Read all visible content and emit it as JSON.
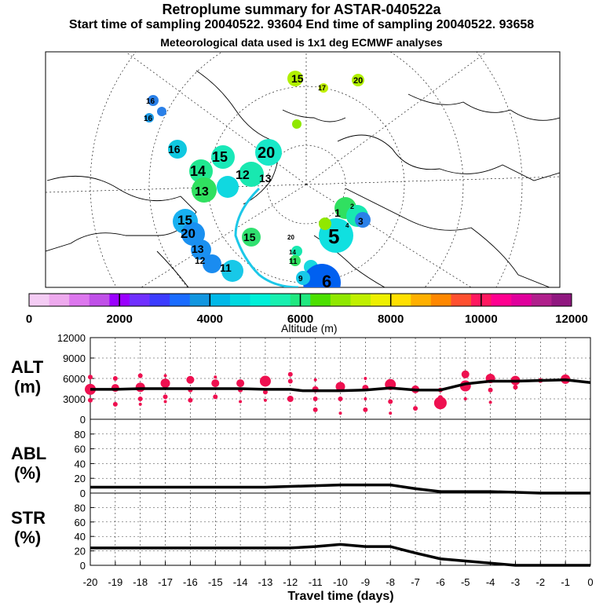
{
  "header": {
    "title": "Retroplume summary for ASTAR-040522a",
    "sampling": "Start time of sampling 20040522. 93604     End time of sampling 20040522. 93658",
    "met": "Meteorological data used is 1x1 deg ECMWF analyses"
  },
  "colorbar": {
    "title": "Altitude (m)",
    "ticks": [
      "0",
      "2000",
      "4000",
      "6000",
      "8000",
      "10000",
      "12000"
    ],
    "colors": [
      "#f4ccf4",
      "#eeaaee",
      "#dd77ee",
      "#c050e8",
      "#9a00ff",
      "#7030ff",
      "#3c3cff",
      "#1a6cff",
      "#1296e0",
      "#00b8e8",
      "#00d8e0",
      "#00f0d8",
      "#18f0b0",
      "#20e880",
      "#4ce000",
      "#90e800",
      "#c0f000",
      "#eef000",
      "#ffe000",
      "#ffb000",
      "#ff8800",
      "#ff5030",
      "#ff1860",
      "#ff0090",
      "#e0009c",
      "#b0208c",
      "#901880"
    ]
  },
  "map_labels": [
    "15",
    "20",
    "17",
    "16",
    "15",
    "20",
    "16",
    "16",
    "15",
    "20",
    "14",
    "13",
    "12",
    "11",
    "12",
    "13",
    "15",
    "20",
    "14",
    "11",
    "9",
    "6",
    "5",
    "1",
    "4",
    "2",
    "3",
    "13"
  ],
  "chart_data": [
    {
      "type": "scatter",
      "name": "altitude",
      "title": "ALT",
      "ylabel": "ALT (m)",
      "xlabel": "Travel time (days)",
      "xlim": [
        -20,
        0
      ],
      "ylim": [
        0,
        12000
      ],
      "yticks": [
        "0",
        "3000",
        "6000",
        "9000",
        "12000"
      ],
      "line": {
        "x": [
          -20,
          -19,
          -18,
          -17,
          -16,
          -15,
          -14,
          -13,
          -12,
          -11.5,
          -11,
          -10,
          -9,
          -8,
          -7,
          -6,
          -5,
          -4,
          -3,
          -2,
          -1,
          0
        ],
        "y": [
          4400,
          4400,
          4500,
          4500,
          4500,
          4500,
          4500,
          4400,
          4400,
          4200,
          4200,
          4200,
          4300,
          4600,
          4300,
          4300,
          5200,
          5600,
          5600,
          5700,
          5800,
          5400
        ]
      },
      "clusters": [
        {
          "x": -20,
          "y": 4400,
          "r": 7
        },
        {
          "x": -20,
          "y": 6200,
          "r": 3
        },
        {
          "x": -20,
          "y": 2800,
          "r": 3
        },
        {
          "x": -19,
          "y": 4600,
          "r": 5
        },
        {
          "x": -19,
          "y": 6000,
          "r": 3
        },
        {
          "x": -19,
          "y": 2200,
          "r": 3
        },
        {
          "x": -18,
          "y": 4700,
          "r": 6
        },
        {
          "x": -18,
          "y": 6400,
          "r": 3
        },
        {
          "x": -18,
          "y": 3000,
          "r": 3
        },
        {
          "x": -18,
          "y": 2200,
          "r": 2
        },
        {
          "x": -17,
          "y": 5300,
          "r": 6
        },
        {
          "x": -17,
          "y": 6400,
          "r": 2
        },
        {
          "x": -17,
          "y": 3300,
          "r": 3
        },
        {
          "x": -17,
          "y": 2600,
          "r": 2
        },
        {
          "x": -16,
          "y": 5800,
          "r": 5
        },
        {
          "x": -16,
          "y": 4300,
          "r": 3
        },
        {
          "x": -16,
          "y": 2800,
          "r": 3
        },
        {
          "x": -15,
          "y": 5300,
          "r": 5
        },
        {
          "x": -15,
          "y": 6200,
          "r": 2
        },
        {
          "x": -15,
          "y": 3300,
          "r": 3
        },
        {
          "x": -14,
          "y": 5300,
          "r": 5
        },
        {
          "x": -14,
          "y": 4300,
          "r": 3
        },
        {
          "x": -14,
          "y": 2600,
          "r": 2
        },
        {
          "x": -13,
          "y": 5600,
          "r": 7
        },
        {
          "x": -13,
          "y": 4000,
          "r": 3
        },
        {
          "x": -13,
          "y": 2800,
          "r": 2
        },
        {
          "x": -12,
          "y": 5600,
          "r": 3
        },
        {
          "x": -12,
          "y": 6600,
          "r": 3
        },
        {
          "x": -12,
          "y": 3000,
          "r": 4
        },
        {
          "x": -11,
          "y": 4400,
          "r": 4
        },
        {
          "x": -11,
          "y": 3000,
          "r": 3
        },
        {
          "x": -11,
          "y": 1400,
          "r": 3
        },
        {
          "x": -11,
          "y": 5800,
          "r": 2
        },
        {
          "x": -10,
          "y": 4800,
          "r": 6
        },
        {
          "x": -10,
          "y": 3000,
          "r": 3
        },
        {
          "x": -10,
          "y": 900,
          "r": 2
        },
        {
          "x": -9,
          "y": 4600,
          "r": 4
        },
        {
          "x": -9,
          "y": 3000,
          "r": 2
        },
        {
          "x": -9,
          "y": 1400,
          "r": 3
        },
        {
          "x": -9,
          "y": 6000,
          "r": 2
        },
        {
          "x": -8,
          "y": 5100,
          "r": 7
        },
        {
          "x": -8,
          "y": 2600,
          "r": 3
        },
        {
          "x": -8,
          "y": 900,
          "r": 2
        },
        {
          "x": -7,
          "y": 4400,
          "r": 5
        },
        {
          "x": -7,
          "y": 1600,
          "r": 3
        },
        {
          "x": -6,
          "y": 2400,
          "r": 8
        },
        {
          "x": -6,
          "y": 3200,
          "r": 3
        },
        {
          "x": -6,
          "y": 4300,
          "r": 3
        },
        {
          "x": -5,
          "y": 4900,
          "r": 7
        },
        {
          "x": -5,
          "y": 6600,
          "r": 5
        },
        {
          "x": -5,
          "y": 3000,
          "r": 2
        },
        {
          "x": -4,
          "y": 6000,
          "r": 6
        },
        {
          "x": -4,
          "y": 4300,
          "r": 3
        },
        {
          "x": -4,
          "y": 2500,
          "r": 2
        },
        {
          "x": -3,
          "y": 5700,
          "r": 6
        },
        {
          "x": -3,
          "y": 4700,
          "r": 3
        },
        {
          "x": -2,
          "y": 5700,
          "r": 3
        },
        {
          "x": -1,
          "y": 5900,
          "r": 6
        }
      ]
    },
    {
      "type": "line",
      "name": "abl",
      "title": "ABL",
      "ylabel": "ABL (%)",
      "xlim": [
        -20,
        0
      ],
      "ylim": [
        0,
        100
      ],
      "yticks": [
        "0",
        "20",
        "40",
        "60",
        "80"
      ],
      "x": [
        -20,
        -19,
        -18,
        -17,
        -16,
        -15,
        -14,
        -13,
        -12,
        -11,
        -10,
        -9,
        -8,
        -7,
        -6,
        -5,
        -4,
        -3,
        -2,
        -1,
        0
      ],
      "y": [
        8,
        8,
        8,
        8,
        8,
        8,
        8,
        8,
        9,
        10,
        11,
        11,
        11,
        6,
        2,
        2,
        2,
        1,
        0,
        0,
        0
      ]
    },
    {
      "type": "line",
      "name": "str",
      "title": "STR",
      "ylabel": "STR (%)",
      "xlim": [
        -20,
        0
      ],
      "ylim": [
        0,
        100
      ],
      "yticks": [
        "0",
        "20",
        "40",
        "60",
        "80"
      ],
      "xticks": [
        "-20",
        "-19",
        "-18",
        "-17",
        "-16",
        "-15",
        "-14",
        "-13",
        "-12",
        "-11",
        "-10",
        "-9",
        "-8",
        "-7",
        "-6",
        "-5",
        "-4",
        "-3",
        "-2",
        "-1",
        "0"
      ],
      "x": [
        -20,
        -19,
        -18,
        -17,
        -16,
        -15,
        -14,
        -13,
        -12,
        -11,
        -10,
        -9,
        -8,
        -7,
        -6,
        -5,
        -4,
        -3,
        -2,
        -1,
        0
      ],
      "y": [
        24,
        24,
        24,
        24,
        24,
        24,
        24,
        24,
        24,
        26,
        29,
        26,
        26,
        17,
        9,
        6,
        3,
        0,
        0,
        0,
        0
      ]
    }
  ],
  "panel_labels": {
    "alt": [
      "ALT",
      "(m)"
    ],
    "abl": [
      "ABL",
      "(%)"
    ],
    "str": [
      "STR",
      "(%)"
    ]
  },
  "xlabel": "Travel time (days)"
}
